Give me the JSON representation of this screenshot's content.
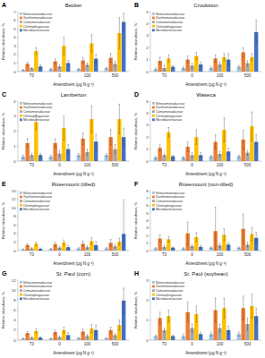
{
  "chart_data": [
    {
      "type": "bar",
      "panel_label": "A",
      "title": "Becker",
      "x_label": "Amendment (μg N g⁻¹)",
      "y_label": "Relative abundance, %",
      "categories": [
        "T0",
        "0",
        "100",
        "500"
      ],
      "ylim": [
        0,
        7
      ],
      "yticks": [
        0,
        1,
        2,
        3,
        4,
        5,
        6,
        7
      ],
      "grid": false,
      "legend": "top-left",
      "series": [
        {
          "name": "Nitrosomonadaceae",
          "color": "#9dc3e6",
          "values": [
            0.2,
            0.3,
            0.3,
            0.4
          ],
          "errors": [
            0.05,
            0.1,
            0.1,
            0.1
          ]
        },
        {
          "name": "Xanthomonadaceae",
          "color": "#ed7d31",
          "values": [
            0.9,
            1.2,
            1.3,
            1.6
          ],
          "errors": [
            0.2,
            0.3,
            0.3,
            0.5
          ]
        },
        {
          "name": "Comamonadaceae",
          "color": "#a5a5a5",
          "values": [
            0.4,
            0.6,
            0.8,
            0.9
          ],
          "errors": [
            0.1,
            0.2,
            0.2,
            0.3
          ]
        },
        {
          "name": "Chitinophagaceae",
          "color": "#ffc000",
          "values": [
            2.4,
            3.0,
            3.3,
            4.5
          ],
          "errors": [
            0.4,
            1.0,
            1.0,
            1.8
          ]
        },
        {
          "name": "Microbacteriaceae",
          "color": "#4472c4",
          "values": [
            0.6,
            1.0,
            1.5,
            5.8
          ],
          "errors": [
            0.2,
            0.3,
            0.5,
            1.0
          ]
        }
      ]
    },
    {
      "type": "bar",
      "panel_label": "B",
      "title": "Crookston",
      "x_label": "Amendment (μg N g⁻¹)",
      "y_label": "Relative abundance, %",
      "categories": [
        "T0",
        "0",
        "100",
        "500"
      ],
      "ylim": [
        0,
        5
      ],
      "yticks": [
        0,
        1,
        2,
        3,
        4,
        5
      ],
      "grid": false,
      "legend": "top-left",
      "series": [
        {
          "name": "Nitrosomonadaceae",
          "color": "#9dc3e6",
          "values": [
            0.2,
            0.3,
            0.3,
            0.4
          ],
          "errors": [
            0.1,
            0.1,
            0.1,
            0.1
          ]
        },
        {
          "name": "Xanthomonadaceae",
          "color": "#ed7d31",
          "values": [
            0.9,
            1.0,
            1.1,
            1.6
          ],
          "errors": [
            0.3,
            0.3,
            0.3,
            0.4
          ]
        },
        {
          "name": "Comamonadaceae",
          "color": "#a5a5a5",
          "values": [
            0.3,
            0.5,
            0.6,
            0.7
          ],
          "errors": [
            0.2,
            0.2,
            0.2,
            0.2
          ]
        },
        {
          "name": "Chitinophagaceae",
          "color": "#ffc000",
          "values": [
            1.1,
            1.3,
            1.2,
            1.2
          ],
          "errors": [
            0.3,
            0.3,
            0.3,
            0.3
          ]
        },
        {
          "name": "Microbacteriaceae",
          "color": "#4472c4",
          "values": [
            0.4,
            0.6,
            1.0,
            3.3
          ],
          "errors": [
            0.1,
            0.2,
            0.5,
            1.0
          ]
        }
      ]
    },
    {
      "type": "bar",
      "panel_label": "C",
      "title": "Lamberton",
      "x_label": "Amendment (μg N g⁻¹)",
      "y_label": "Relative abundance, %",
      "categories": [
        "T0",
        "0",
        "100",
        "500"
      ],
      "ylim": [
        0,
        4
      ],
      "yticks": [
        0,
        1,
        2,
        3,
        4
      ],
      "grid": false,
      "legend": "top-left",
      "series": [
        {
          "name": "Nitrosomonadaceae",
          "color": "#9dc3e6",
          "values": [
            0.3,
            0.3,
            0.4,
            0.4
          ],
          "errors": [
            0.1,
            0.1,
            0.1,
            0.1
          ]
        },
        {
          "name": "Xanthomonadaceae",
          "color": "#ed7d31",
          "values": [
            1.2,
            1.2,
            1.5,
            1.6
          ],
          "errors": [
            0.3,
            0.3,
            0.4,
            0.5
          ]
        },
        {
          "name": "Comamonadaceae",
          "color": "#a5a5a5",
          "values": [
            0.4,
            0.5,
            0.6,
            0.8
          ],
          "errors": [
            0.1,
            0.2,
            0.2,
            0.3
          ]
        },
        {
          "name": "Chitinophagaceae",
          "color": "#ffc000",
          "values": [
            2.6,
            2.2,
            2.8,
            2.8
          ],
          "errors": [
            0.5,
            0.8,
            0.9,
            1.0
          ]
        },
        {
          "name": "Microbacteriaceae",
          "color": "#4472c4",
          "values": [
            0.4,
            0.8,
            1.3,
            1.6
          ],
          "errors": [
            0.1,
            0.3,
            0.5,
            0.6
          ]
        }
      ]
    },
    {
      "type": "bar",
      "panel_label": "D",
      "title": "Waseca",
      "x_label": "Amendment (μg N g⁻¹)",
      "y_label": "Relative abundance, %",
      "categories": [
        "T0",
        "0",
        "100",
        "500"
      ],
      "ylim": [
        0,
        5
      ],
      "yticks": [
        0,
        1,
        2,
        3,
        4,
        5
      ],
      "grid": false,
      "legend": "top-left",
      "series": [
        {
          "name": "Nitrosomonadaceae",
          "color": "#9dc3e6",
          "values": [
            0.3,
            0.3,
            0.4,
            0.4
          ],
          "errors": [
            0.1,
            0.1,
            0.1,
            0.1
          ]
        },
        {
          "name": "Xanthomonadaceae",
          "color": "#ed7d31",
          "values": [
            1.1,
            1.2,
            1.6,
            1.8
          ],
          "errors": [
            0.3,
            0.4,
            0.6,
            0.8
          ]
        },
        {
          "name": "Comamonadaceae",
          "color": "#a5a5a5",
          "values": [
            0.5,
            0.5,
            0.6,
            0.7
          ],
          "errors": [
            0.1,
            0.2,
            0.2,
            0.2
          ]
        },
        {
          "name": "Chitinophagaceae",
          "color": "#ffc000",
          "values": [
            2.4,
            2.0,
            2.6,
            2.9
          ],
          "errors": [
            0.4,
            0.6,
            1.0,
            1.2
          ]
        },
        {
          "name": "Microbacteriaceae",
          "color": "#4472c4",
          "values": [
            0.4,
            0.5,
            0.8,
            1.6
          ],
          "errors": [
            0.1,
            0.2,
            0.3,
            0.6
          ]
        }
      ]
    },
    {
      "type": "bar",
      "panel_label": "E",
      "title": "Rosemount (tilled)",
      "x_label": "Amendment (μg N g⁻¹)",
      "y_label": "Relative abundance, %",
      "categories": [
        "T0",
        "0",
        "100",
        "500"
      ],
      "ylim": [
        0,
        14
      ],
      "yticks": [
        0,
        2,
        4,
        6,
        8,
        10,
        12,
        14
      ],
      "grid": false,
      "legend": "top-left",
      "series": [
        {
          "name": "Nitrosomonadaceae",
          "color": "#9dc3e6",
          "values": [
            0.3,
            0.4,
            0.5,
            0.5
          ],
          "errors": [
            0.1,
            0.1,
            0.2,
            0.2
          ]
        },
        {
          "name": "Xanthomonadaceae",
          "color": "#ed7d31",
          "values": [
            1.3,
            1.5,
            1.6,
            1.8
          ],
          "errors": [
            0.3,
            0.5,
            0.6,
            0.8
          ]
        },
        {
          "name": "Comamonadaceae",
          "color": "#a5a5a5",
          "values": [
            0.5,
            0.7,
            0.8,
            1.0
          ],
          "errors": [
            0.2,
            0.3,
            0.3,
            0.4
          ]
        },
        {
          "name": "Chitinophagaceae",
          "color": "#ffc000",
          "values": [
            1.6,
            1.9,
            2.2,
            2.1
          ],
          "errors": [
            0.4,
            0.6,
            0.8,
            0.8
          ]
        },
        {
          "name": "Microbacteriaceae",
          "color": "#4472c4",
          "values": [
            0.4,
            0.8,
            1.3,
            3.9
          ],
          "errors": [
            0.2,
            0.4,
            0.8,
            8.0
          ]
        }
      ]
    },
    {
      "type": "bar",
      "panel_label": "F",
      "title": "Rosemount (non-tilled)",
      "x_label": "Amendment (μg N g⁻¹)",
      "y_label": "Relative abundance, %",
      "categories": [
        "T0",
        "0",
        "100",
        "500"
      ],
      "ylim": [
        0,
        8
      ],
      "yticks": [
        0,
        1,
        2,
        3,
        4,
        5,
        6,
        7,
        8
      ],
      "grid": false,
      "legend": "top-left",
      "series": [
        {
          "name": "Nitrosomonadaceae",
          "color": "#9dc3e6",
          "values": [
            0.3,
            0.3,
            0.4,
            0.4
          ],
          "errors": [
            0.1,
            0.1,
            0.1,
            0.1
          ]
        },
        {
          "name": "Xanthomonadaceae",
          "color": "#ed7d31",
          "values": [
            1.6,
            2.3,
            2.6,
            2.9
          ],
          "errors": [
            0.5,
            1.5,
            3.2,
            2.0
          ]
        },
        {
          "name": "Comamonadaceae",
          "color": "#a5a5a5",
          "values": [
            0.5,
            0.6,
            0.7,
            0.8
          ],
          "errors": [
            0.2,
            0.2,
            0.3,
            0.3
          ]
        },
        {
          "name": "Chitinophagaceae",
          "color": "#ffc000",
          "values": [
            1.5,
            1.8,
            2.1,
            2.2
          ],
          "errors": [
            0.4,
            0.6,
            0.8,
            0.9
          ]
        },
        {
          "name": "Microbacteriaceae",
          "color": "#4472c4",
          "values": [
            0.4,
            0.5,
            0.8,
            1.7
          ],
          "errors": [
            0.1,
            0.2,
            0.3,
            0.7
          ]
        }
      ]
    },
    {
      "type": "bar",
      "panel_label": "G",
      "title": "St. Paul (corn)",
      "x_label": "Amendment (μg N g⁻¹)",
      "y_label": "Relative abundance, %",
      "categories": [
        "T0",
        "0",
        "100",
        "500"
      ],
      "ylim": [
        0,
        12
      ],
      "yticks": [
        0,
        2,
        4,
        6,
        8,
        10,
        12
      ],
      "grid": false,
      "legend": "top-left",
      "series": [
        {
          "name": "Nitrosomonadaceae",
          "color": "#9dc3e6",
          "values": [
            0.3,
            0.3,
            0.4,
            0.4
          ],
          "errors": [
            0.1,
            0.1,
            0.1,
            0.1
          ]
        },
        {
          "name": "Xanthomonadaceae",
          "color": "#ed7d31",
          "values": [
            1.4,
            1.6,
            1.7,
            2.0
          ],
          "errors": [
            0.3,
            0.4,
            0.5,
            0.6
          ]
        },
        {
          "name": "Comamonadaceae",
          "color": "#a5a5a5",
          "values": [
            0.5,
            0.6,
            0.8,
            1.0
          ],
          "errors": [
            0.2,
            0.2,
            0.3,
            0.3
          ]
        },
        {
          "name": "Chitinophagaceae",
          "color": "#ffc000",
          "values": [
            1.8,
            2.0,
            2.3,
            3.0
          ],
          "errors": [
            0.4,
            0.6,
            0.8,
            1.0
          ]
        },
        {
          "name": "Microbacteriaceae",
          "color": "#4472c4",
          "values": [
            0.5,
            1.0,
            2.0,
            7.9
          ],
          "errors": [
            0.2,
            0.5,
            1.0,
            2.5
          ]
        }
      ]
    },
    {
      "type": "bar",
      "panel_label": "H",
      "title": "St. Paul (soybean)",
      "x_label": "Amendment (μg N g⁻¹)",
      "y_label": "Relative abundance, %",
      "categories": [
        "T0",
        "0",
        "100",
        "500"
      ],
      "ylim": [
        0,
        3
      ],
      "yticks": [
        0,
        1,
        2,
        3
      ],
      "grid": false,
      "legend": "top-left",
      "series": [
        {
          "name": "Nitrosomonadaceae",
          "color": "#9dc3e6",
          "values": [
            0.2,
            0.2,
            0.3,
            0.3
          ],
          "errors": [
            0.05,
            0.1,
            0.1,
            0.1
          ]
        },
        {
          "name": "Xanthomonadaceae",
          "color": "#ed7d31",
          "values": [
            1.1,
            1.4,
            1.5,
            1.6
          ],
          "errors": [
            0.3,
            0.5,
            0.6,
            0.6
          ]
        },
        {
          "name": "Comamonadaceae",
          "color": "#a5a5a5",
          "values": [
            0.5,
            0.6,
            0.6,
            0.8
          ],
          "errors": [
            0.1,
            0.2,
            0.2,
            0.3
          ]
        },
        {
          "name": "Chitinophagaceae",
          "color": "#ffc000",
          "values": [
            1.2,
            1.3,
            1.6,
            1.7
          ],
          "errors": [
            0.3,
            0.4,
            0.5,
            0.6
          ]
        },
        {
          "name": "Microbacteriaceae",
          "color": "#4472c4",
          "values": [
            0.2,
            0.3,
            0.5,
            1.2
          ],
          "errors": [
            0.05,
            0.1,
            0.2,
            0.4
          ]
        }
      ]
    }
  ]
}
